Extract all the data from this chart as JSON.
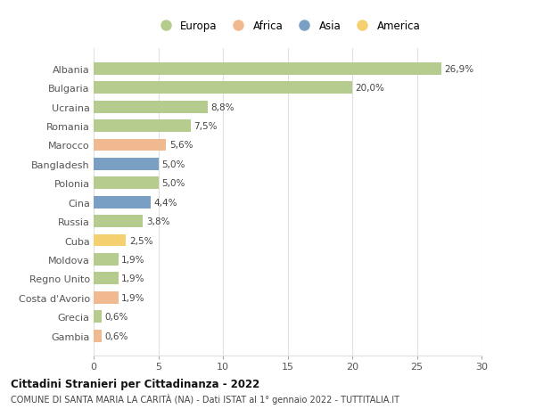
{
  "categories": [
    "Albania",
    "Bulgaria",
    "Ucraina",
    "Romania",
    "Marocco",
    "Bangladesh",
    "Polonia",
    "Cina",
    "Russia",
    "Cuba",
    "Moldova",
    "Regno Unito",
    "Costa d'Avorio",
    "Grecia",
    "Gambia"
  ],
  "values": [
    26.9,
    20.0,
    8.8,
    7.5,
    5.6,
    5.0,
    5.0,
    4.4,
    3.8,
    2.5,
    1.9,
    1.9,
    1.9,
    0.6,
    0.6
  ],
  "labels": [
    "26,9%",
    "20,0%",
    "8,8%",
    "7,5%",
    "5,6%",
    "5,0%",
    "5,0%",
    "4,4%",
    "3,8%",
    "2,5%",
    "1,9%",
    "1,9%",
    "1,9%",
    "0,6%",
    "0,6%"
  ],
  "continents": [
    "Europa",
    "Europa",
    "Europa",
    "Europa",
    "Africa",
    "Asia",
    "Europa",
    "Asia",
    "Europa",
    "America",
    "Europa",
    "Europa",
    "Africa",
    "Europa",
    "Africa"
  ],
  "colors": {
    "Europa": "#b5cc8e",
    "Africa": "#f0b990",
    "Asia": "#7a9fc5",
    "America": "#f5d070"
  },
  "legend_order": [
    "Europa",
    "Africa",
    "Asia",
    "America"
  ],
  "xlim": [
    0,
    30
  ],
  "xticks": [
    0,
    5,
    10,
    15,
    20,
    25,
    30
  ],
  "title": "Cittadini Stranieri per Cittadinanza - 2022",
  "subtitle": "COMUNE DI SANTA MARIA LA CARITÀ (NA) - Dati ISTAT al 1° gennaio 2022 - TUTTITALIA.IT",
  "background_color": "#ffffff",
  "grid_color": "#e0e0e0",
  "bar_height": 0.65
}
